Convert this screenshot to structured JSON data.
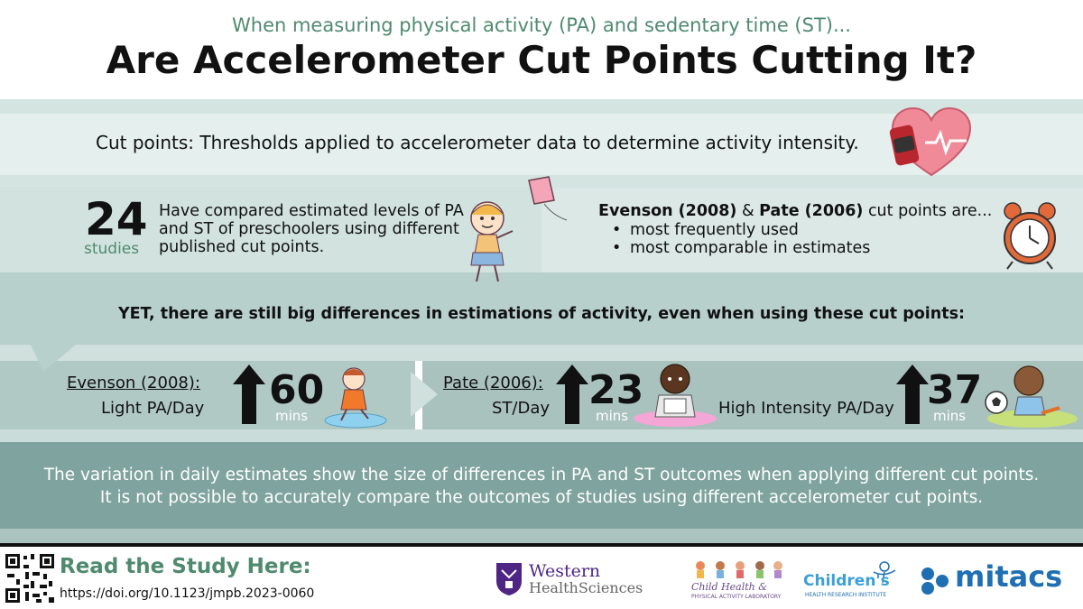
{
  "header": {
    "subtitle": "When measuring physical activity (PA) and sedentary time (ST)...",
    "title": "Are Accelerometer Cut Points Cutting It?"
  },
  "definition": {
    "text": "Cut points: Thresholds applied to accelerometer data to determine activity intensity.",
    "icon": "heart-watch-icon"
  },
  "studies": {
    "count": "24",
    "unit": "studies",
    "text": "Have compared estimated levels of PA and ST of preschoolers using different published cut points.",
    "illustration": "girl-kite-icon"
  },
  "evenson_pate": {
    "name1": "Evenson (2008)",
    "amp": " & ",
    "name2": "Pate (2006)",
    "suffix": " cut points are...",
    "bullets": [
      "most frequently used",
      "most comparable in estimates"
    ],
    "icon": "alarm-clock-icon"
  },
  "yet": {
    "text": "YET, there are still big differences in estimations of activity, even when using these cut points:"
  },
  "stats": [
    {
      "source": "Evenson (2008):",
      "measure": "Light PA/Day",
      "value": "60",
      "unit": "mins",
      "icon": "up-arrow-icon"
    },
    {
      "source": "Pate (2006):",
      "measure": "ST/Day",
      "value": "23",
      "unit": "mins",
      "icon": "up-arrow-icon"
    },
    {
      "source": "",
      "measure": "High Intensity PA/Day",
      "value": "37",
      "unit": "mins",
      "icon": "up-arrow-icon"
    }
  ],
  "variation": {
    "text": "The variation in daily estimates show the size of differences in PA and ST outcomes when applying different cut points. It is not possible to accurately compare the outcomes of studies using different accelerometer cut points."
  },
  "footer": {
    "read_label": "Read the Study Here:",
    "doi": "https://doi.org/10.1123/jmpb.2023-0060",
    "logos": {
      "western_line1": "Western",
      "western_line2": "HealthSciences",
      "chl_line1": "Child Health &",
      "chl_line2": "PHYSICAL ACTIVITY LABORATORY",
      "childrens_line1": "Children's",
      "childrens_line2": "HEALTH RESEARCH INSTITUTE",
      "mitacs": "mitacs"
    }
  },
  "colors": {
    "accent_green": "#4f8a6e",
    "mitacs_blue": "#1f6fb3",
    "western_purple": "#4f2683",
    "heart_pink": "#f08a98"
  }
}
